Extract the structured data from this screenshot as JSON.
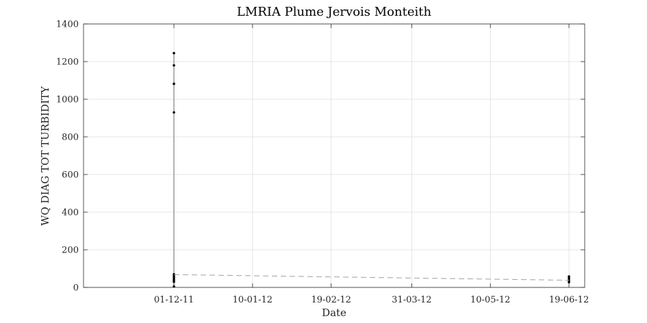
{
  "chart_data": {
    "type": "line",
    "title": "LMRIA Plume Jervois Monteith",
    "xlabel": "Date",
    "ylabel": "WQ DIAG TOT TURBIDITY",
    "xlim": [
      "2011-10-16",
      "2012-06-27"
    ],
    "ylim": [
      0,
      1400
    ],
    "x_ticks": [
      "2011-12-01",
      "2012-01-10",
      "2012-02-19",
      "2012-03-31",
      "2012-05-10",
      "2012-06-19"
    ],
    "x_tick_labels": [
      "01-12-11",
      "10-01-12",
      "19-02-12",
      "31-03-12",
      "10-05-12",
      "19-06-12"
    ],
    "y_ticks": [
      0,
      200,
      400,
      600,
      800,
      1000,
      1200,
      1400
    ],
    "y_tick_labels": [
      "0",
      "200",
      "400",
      "600",
      "800",
      "1000",
      "1200",
      "1400"
    ],
    "grid": true,
    "series": [
      {
        "style": "solid-with-dots",
        "color": "#808080",
        "marker_color": "#000000",
        "points": [
          {
            "x": "2011-12-01",
            "y": 1245
          },
          {
            "x": "2011-12-01",
            "y": 1180
          },
          {
            "x": "2011-12-01",
            "y": 1082
          },
          {
            "x": "2011-12-01",
            "y": 930
          },
          {
            "x": "2011-12-01",
            "y": 70
          },
          {
            "x": "2011-12-01",
            "y": 60
          },
          {
            "x": "2011-12-01",
            "y": 50
          },
          {
            "x": "2011-12-01",
            "y": 40
          },
          {
            "x": "2011-12-01",
            "y": 30
          },
          {
            "x": "2011-12-01",
            "y": 5
          },
          {
            "x": "2012-06-19",
            "y": 58
          },
          {
            "x": "2012-06-19",
            "y": 48
          },
          {
            "x": "2012-06-19",
            "y": 38
          },
          {
            "x": "2012-06-19",
            "y": 28
          }
        ]
      },
      {
        "style": "dashed",
        "color": "#a0a0a0",
        "points": [
          {
            "x": "2011-12-01",
            "y": 68
          },
          {
            "x": "2012-06-19",
            "y": 38
          }
        ]
      }
    ]
  }
}
